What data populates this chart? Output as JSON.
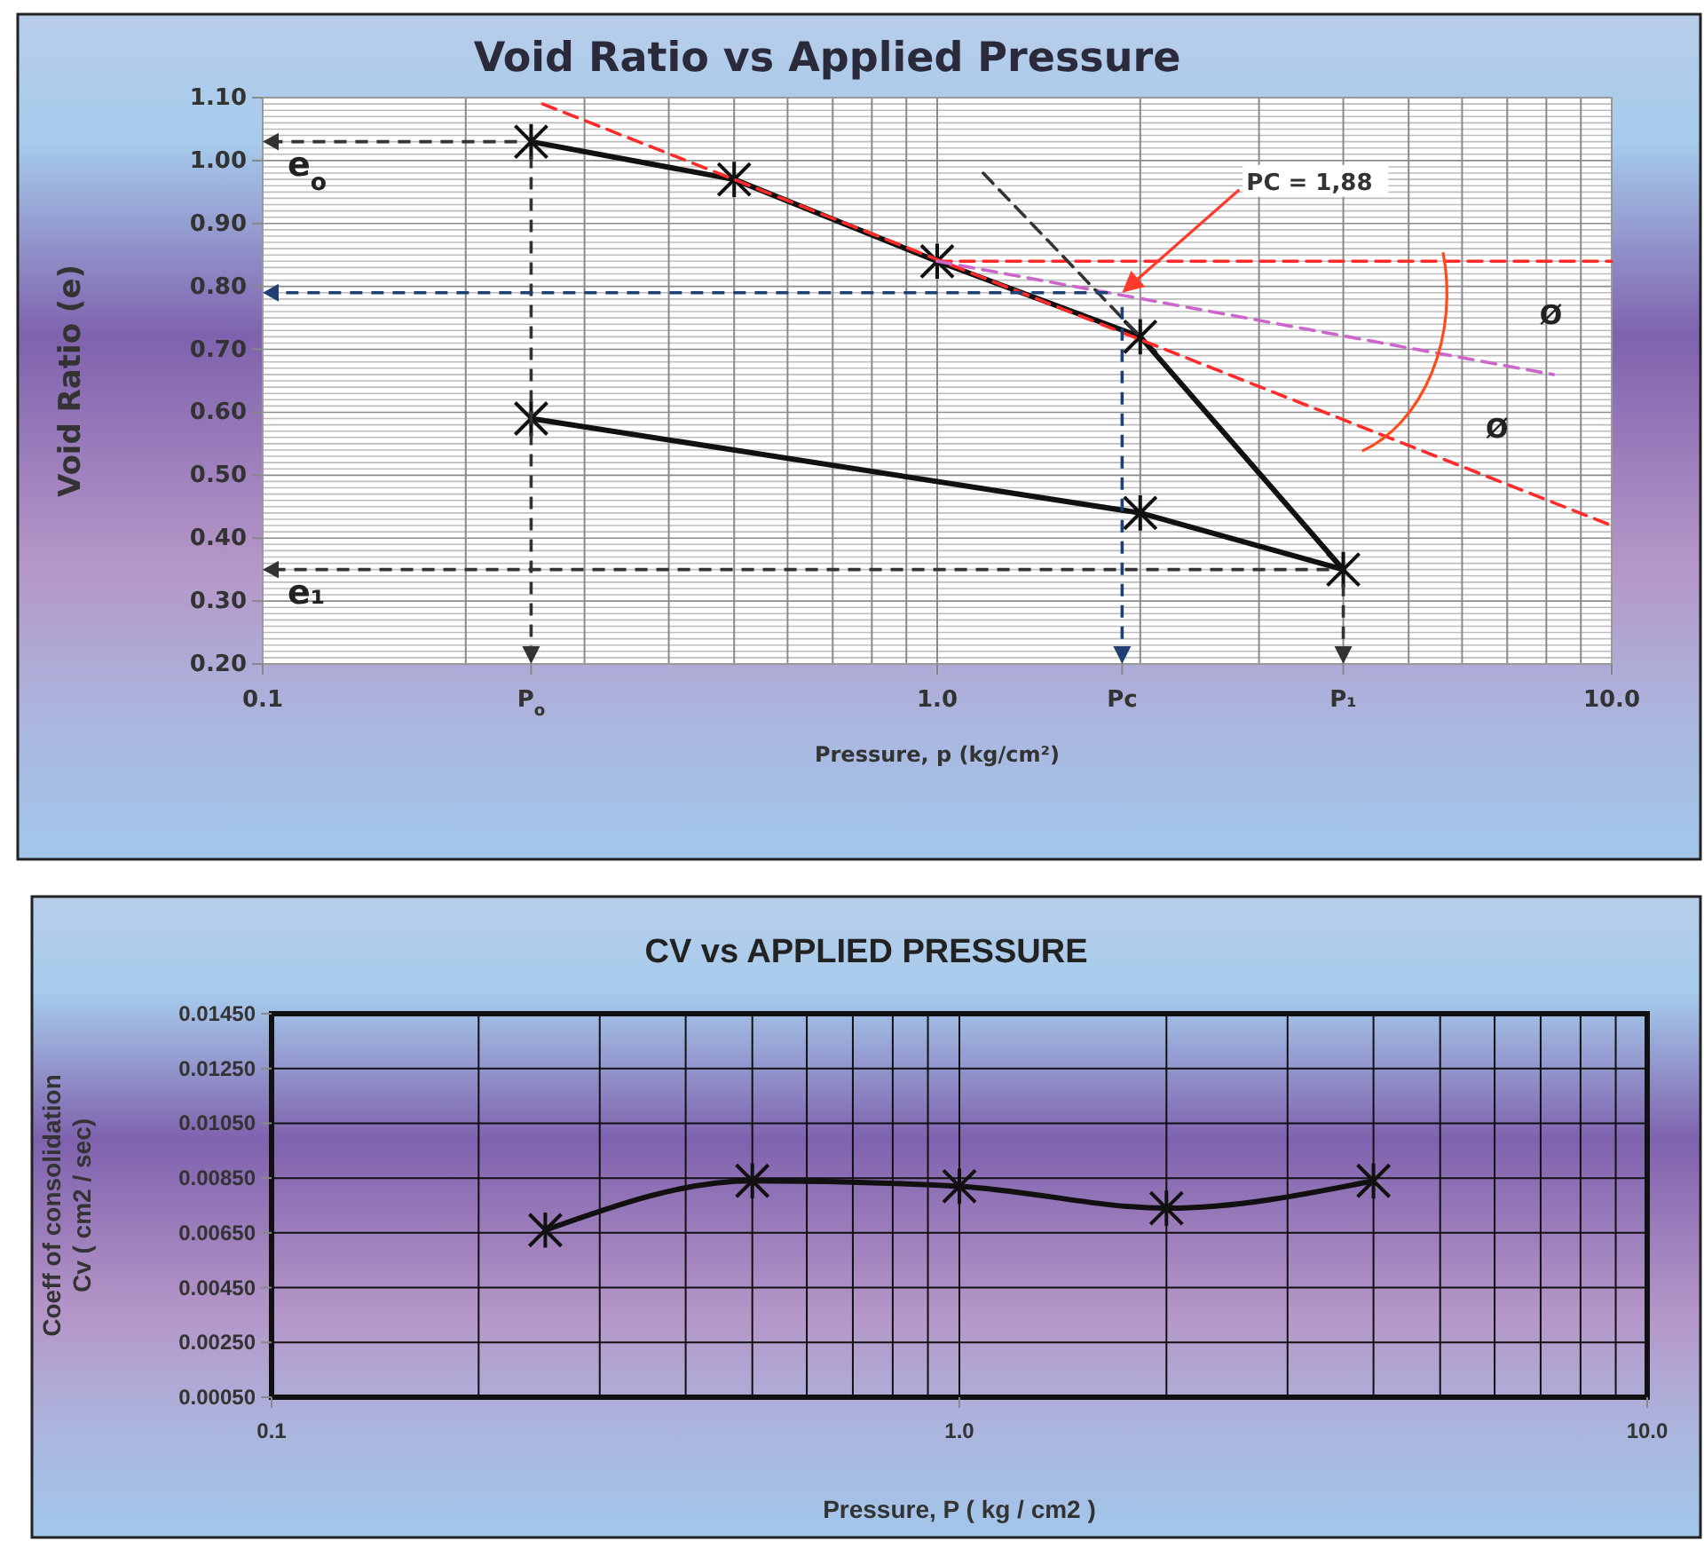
{
  "chart_data": [
    {
      "type": "line",
      "title": "Void Ratio vs Applied Pressure",
      "xlabel": "Pressure, p (kg/cm²)",
      "ylabel": "Void  Ratio (e)",
      "log": "x",
      "grid": true,
      "xlim": [
        0.1,
        10
      ],
      "xticks": [
        {
          "value": 0.1,
          "label": "0.1"
        },
        {
          "value": 0.25,
          "label": "P$_{o}$"
        },
        {
          "value": 1,
          "label": "1.0"
        },
        {
          "value": 1.88,
          "label": "Pc"
        },
        {
          "value": 4,
          "label": "P₁"
        },
        {
          "value": 10,
          "label": "10.0"
        }
      ],
      "ylim": [
        0.2,
        1.1
      ],
      "yticks": [
        {
          "value": 0.2,
          "label": "0.20"
        },
        {
          "value": 0.3,
          "label": "0.30"
        },
        {
          "value": 0.4,
          "label": "0.40"
        },
        {
          "value": 0.5,
          "label": "0.50"
        },
        {
          "value": 0.6,
          "label": "0.60"
        },
        {
          "value": 0.7,
          "label": "0.70"
        },
        {
          "value": 0.8,
          "label": "0.80"
        },
        {
          "value": 0.9,
          "label": "0.90"
        },
        {
          "value": 1,
          "label": "1.00"
        },
        {
          "value": 1.1,
          "label": "1.10"
        }
      ],
      "series": [
        {
          "color": "#111111",
          "x": [
            0.25,
            0.5,
            1,
            2,
            4,
            2,
            0.25
          ],
          "values": [
            1.03,
            0.97,
            0.84,
            0.72,
            0.35,
            0.44,
            0.59
          ],
          "marker": "cross",
          "line_style": "solid"
        },
        {
          "color": "#ff2a2a",
          "x": [
            0.26,
            10
          ],
          "values": [
            1.09,
            0.42
          ],
          "marker": "none",
          "line_style": "dashed"
        },
        {
          "color": "#ff2a2a",
          "x": [
            1,
            10
          ],
          "values": [
            0.84,
            0.84
          ],
          "marker": "none",
          "line_style": "dashed"
        },
        {
          "color": "#cc66cc",
          "x": [
            1,
            8.2
          ],
          "values": [
            0.84,
            0.66
          ],
          "marker": "none",
          "line_style": "dashed"
        },
        {
          "color": "#333333",
          "x": [
            1.17,
            2
          ],
          "values": [
            0.98,
            0.72
          ],
          "marker": "none",
          "line_style": "dashed"
        }
      ],
      "ref_lines": [
        {
          "axis": "x",
          "value": 0.25,
          "color": "#333333",
          "line_style": "dashed"
        },
        {
          "axis": "x",
          "value": 1.88,
          "color": "#1f3f75",
          "line_style": "dashed"
        },
        {
          "axis": "x",
          "value": 4,
          "color": "#333333",
          "line_style": "dashed"
        }
      ],
      "annotations": [
        {
          "text": "PC =  1,88",
          "x": 1.88,
          "y": 0.79
        },
        {
          "text": "e$_{o}$",
          "x": 0.25,
          "y": 1.03
        },
        {
          "text": "e₁",
          "x": 4,
          "y": 0.35
        },
        "Ø",
        "Ø"
      ]
    },
    {
      "type": "line",
      "title": "CV vs APPLIED PRESSURE",
      "xlabel": "Pressure, P ( kg / cm2 )",
      "ylabel": "Coeff of consolidation\nCv ( cm2 / sec)",
      "log": "x",
      "grid": true,
      "marker": "cross",
      "line_style": "solid",
      "xlim": [
        0.1,
        10
      ],
      "xticks": [
        {
          "value": 0.1,
          "label": "0.1"
        },
        {
          "value": 1,
          "label": "1.0"
        },
        {
          "value": 10,
          "label": "10.0"
        }
      ],
      "ylim": [
        0.0005,
        0.0145
      ],
      "yticks": [
        {
          "value": 0.0005,
          "label": "0.00050"
        },
        {
          "value": 0.0025,
          "label": "0.00250"
        },
        {
          "value": 0.0045,
          "label": "0.00450"
        },
        {
          "value": 0.0065,
          "label": "0.00650"
        },
        {
          "value": 0.0085,
          "label": "0.00850"
        },
        {
          "value": 0.0105,
          "label": "0.01050"
        },
        {
          "value": 0.0125,
          "label": "0.01250"
        },
        {
          "value": 0.0145,
          "label": "0.01450"
        }
      ],
      "x": [
        0.25,
        0.5,
        1,
        2,
        4
      ],
      "series": [
        {
          "color": "#111111",
          "values": [
            0.0066,
            0.0084,
            0.0082,
            0.0074,
            0.0084
          ]
        }
      ]
    }
  ]
}
